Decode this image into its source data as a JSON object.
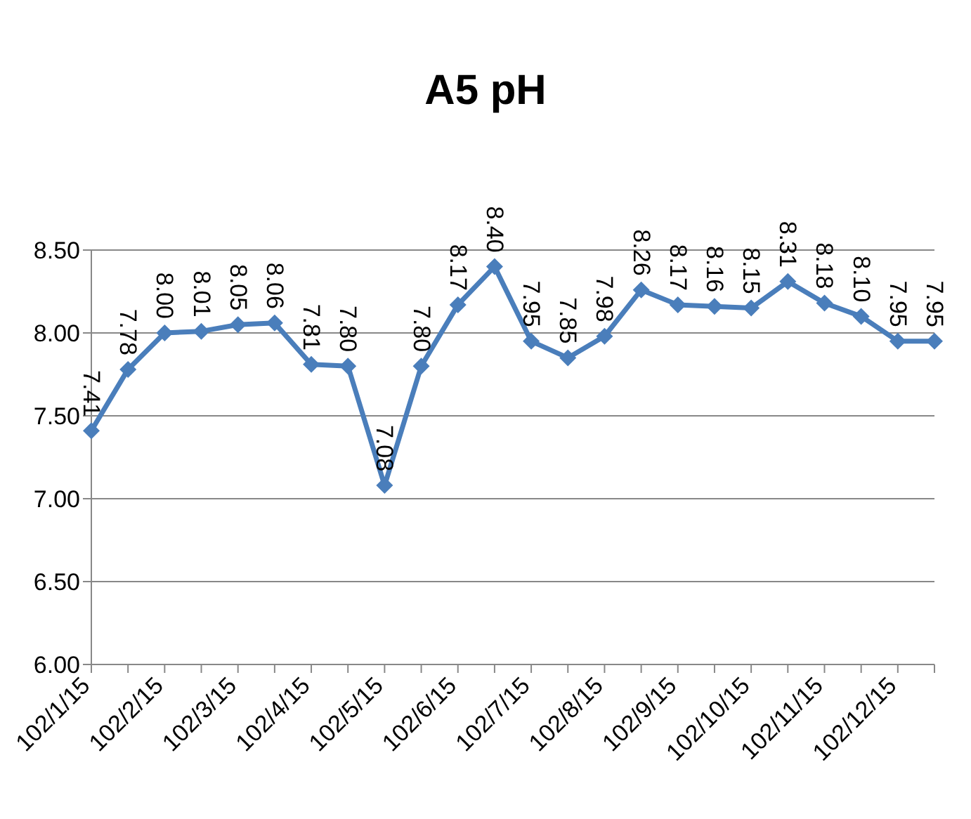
{
  "chart_data": {
    "type": "line",
    "title": "A5 pH",
    "categories": [
      "102/1/15",
      null,
      "102/2/15",
      null,
      "102/3/15",
      null,
      "102/4/15",
      null,
      "102/5/15",
      null,
      "102/6/15",
      null,
      "102/7/15",
      null,
      "102/8/15",
      null,
      "102/9/15",
      null,
      "102/10/15",
      null,
      "102/11/15",
      null,
      "102/12/15",
      null
    ],
    "series": [
      {
        "color": "#4a7ebb",
        "values": [
          7.41,
          7.78,
          8.0,
          8.01,
          8.05,
          8.06,
          7.81,
          7.8,
          7.08,
          7.8,
          8.17,
          8.4,
          7.95,
          7.85,
          7.98,
          8.26,
          8.17,
          8.16,
          8.15,
          8.31,
          8.18,
          8.1,
          7.95,
          7.95
        ],
        "value_labels": [
          "7.41",
          "7.78",
          "8.00",
          "8.01",
          "8.05",
          "8.06",
          "7.81",
          "7.80",
          "7.08",
          "7.80",
          "8.17",
          "8.40",
          "7.95",
          "7.85",
          "7.98",
          "8.26",
          "8.17",
          "8.16",
          "8.15",
          "8.31",
          "8.18",
          "8.10",
          "7.95",
          "7.95"
        ]
      }
    ],
    "ylim": [
      6,
      8.5
    ],
    "yticks": [
      {
        "value": 6,
        "label": "6.00"
      },
      {
        "value": 6.5,
        "label": "6.50"
      },
      {
        "value": 7,
        "label": "7.00"
      },
      {
        "value": 7.5,
        "label": "7.50"
      },
      {
        "value": 8,
        "label": "8.00"
      },
      {
        "value": 8.5,
        "label": "8.50"
      }
    ],
    "grid": "y",
    "legend": false,
    "marker": "diamond",
    "line_style": "solid"
  }
}
